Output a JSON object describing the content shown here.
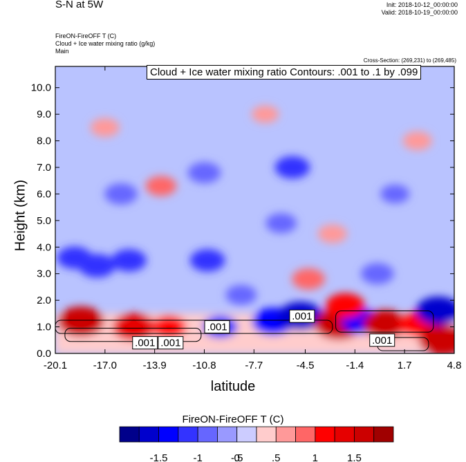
{
  "header": {
    "title": "S-N at 5W",
    "init": "Init: 2018-10-12_00:00:00",
    "valid": "Valid: 2018-10-19_00:00:00",
    "line1": "FireON-FireOFF T   (C)",
    "line2": "Cloud + Ice water mixing ratio   (g/kg)",
    "line3": "Main",
    "cross_section": "Cross-Section: (269,231) to (269,485)"
  },
  "colors": {
    "palette": [
      "#00008b",
      "#0000cd",
      "#0000ff",
      "#3333ff",
      "#6666ff",
      "#9999ff",
      "#ccccff",
      "#ffcccc",
      "#ff9999",
      "#ff6666",
      "#ff0000",
      "#e60000",
      "#cc0000",
      "#a00000"
    ],
    "background_fill": "#b9c3ff"
  },
  "chart_data": {
    "type": "heatmap",
    "title": "Cloud + Ice water mixing ratio Contours: .001 to .1 by .099",
    "xlabel": "latitude",
    "ylabel": "Height (km)",
    "x_ticks": [
      "-20.1",
      "-17.0",
      "-13.9",
      "-10.8",
      "-7.7",
      "-4.5",
      "-1.4",
      "1.7",
      "4.8"
    ],
    "y_ticks": [
      "0.0",
      "1.0",
      "2.0",
      "3.0",
      "4.0",
      "5.0",
      "6.0",
      "7.0",
      "8.0",
      "9.0",
      "10.0"
    ],
    "xlim": [
      -20.1,
      4.8
    ],
    "ylim": [
      0.0,
      10.8
    ],
    "contour_labels": [
      {
        "text": ".001",
        "x": -14.5,
        "y": 0.4
      },
      {
        "text": ".001",
        "x": -12.9,
        "y": 0.4
      },
      {
        "text": ".001",
        "x": -10.0,
        "y": 1.0
      },
      {
        "text": ".001",
        "x": -4.7,
        "y": 1.4
      },
      {
        "text": ".001",
        "x": 0.3,
        "y": 0.5
      }
    ],
    "colorbar": {
      "title": "FireON-FireOFF T  (C)",
      "tick_labels": [
        "-1.5",
        "-1",
        "-.5",
        "0",
        ".5",
        "1",
        "1.5"
      ],
      "levels": [
        -1.5,
        -1.25,
        -1.0,
        -0.75,
        -0.5,
        -0.25,
        0,
        0.25,
        0.5,
        0.75,
        1.0,
        1.25,
        1.5
      ]
    },
    "anomalies": [
      {
        "x": -18.5,
        "y": 1.2,
        "v": 1.4
      },
      {
        "x": -15.2,
        "y": 1.0,
        "v": 1.2
      },
      {
        "x": -13.0,
        "y": 1.0,
        "v": 0.8
      },
      {
        "x": -9.8,
        "y": 1.0,
        "v": -0.8
      },
      {
        "x": -6.5,
        "y": 1.2,
        "v": -1.2
      },
      {
        "x": -4.8,
        "y": 1.4,
        "v": -1.3
      },
      {
        "x": -2.4,
        "y": 1.1,
        "v": 1.5
      },
      {
        "x": -1.0,
        "y": 1.2,
        "v": -1.0
      },
      {
        "x": 0.5,
        "y": 1.1,
        "v": 1.3
      },
      {
        "x": 2.5,
        "y": 1.1,
        "v": 1.0
      },
      {
        "x": 4.1,
        "y": 0.5,
        "v": 1.5
      },
      {
        "x": 3.8,
        "y": 1.6,
        "v": -1.3
      },
      {
        "x": -4.3,
        "y": 2.8,
        "v": 0.7
      },
      {
        "x": -2.0,
        "y": 1.8,
        "v": 1.0
      },
      {
        "x": -18.9,
        "y": 3.6,
        "v": -0.8
      },
      {
        "x": -17.5,
        "y": 3.3,
        "v": -0.9
      },
      {
        "x": -15.5,
        "y": 3.5,
        "v": -0.8
      },
      {
        "x": -10.6,
        "y": 3.5,
        "v": -0.8
      },
      {
        "x": -13.5,
        "y": 6.3,
        "v": 0.6
      },
      {
        "x": -16.0,
        "y": 6.0,
        "v": -0.7
      },
      {
        "x": -10.8,
        "y": 6.8,
        "v": -0.7
      },
      {
        "x": -5.3,
        "y": 7.0,
        "v": -0.8
      },
      {
        "x": -6.0,
        "y": 4.9,
        "v": -0.6
      },
      {
        "x": 1.1,
        "y": 6.0,
        "v": -0.5
      },
      {
        "x": -2.8,
        "y": 4.5,
        "v": 0.5
      },
      {
        "x": -17.0,
        "y": 8.5,
        "v": 0.5
      },
      {
        "x": -7.0,
        "y": 9.0,
        "v": 0.4
      },
      {
        "x": 2.5,
        "y": 8.0,
        "v": 0.5
      },
      {
        "x": -8.5,
        "y": 2.2,
        "v": -0.6
      },
      {
        "x": 0.0,
        "y": 3.0,
        "v": -0.7
      }
    ]
  }
}
